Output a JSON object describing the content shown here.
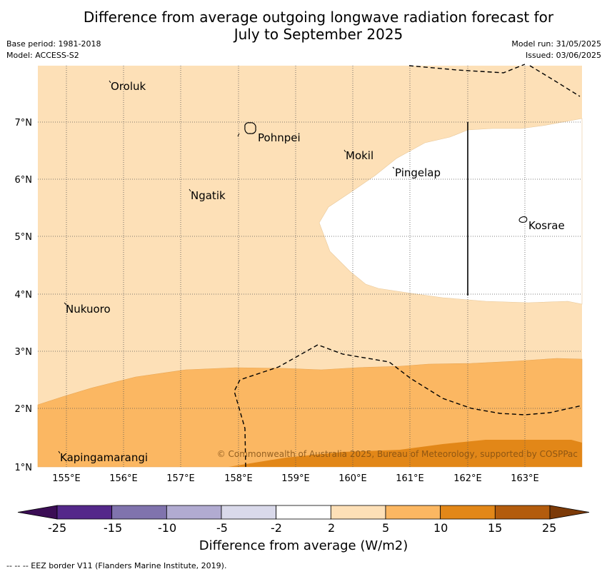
{
  "header": {
    "title_line1": "Difference from average outgoing longwave radiation forecast for",
    "title_line2": "July to September 2025",
    "base_period": "Base period: 1981-2018",
    "model": "Model: ACCESS-S2",
    "model_run": "Model run: 31/05/2025",
    "issued": "Issued: 03/06/2025"
  },
  "map": {
    "lon_labels": [
      "155°E",
      "156°E",
      "157°E",
      "158°E",
      "159°E",
      "160°E",
      "161°E",
      "162°E",
      "163°E"
    ],
    "lat_labels": [
      "7°N",
      "6°N",
      "5°N",
      "4°N",
      "3°N",
      "2°N",
      "1°N"
    ],
    "places": [
      "Oroluk",
      "Pohnpei",
      "Mokil",
      "Pingelap",
      "Ngatik",
      "Kosrae",
      "Nukuoro",
      "Kapingamarangi"
    ],
    "copyright": "© Commonwealth of Australia 2025, Bureau of Meteorology, supported by COSPPac",
    "colors": {
      "white": "#ffffff",
      "light_orange": "#fde0b7",
      "mid_orange": "#fbb762",
      "dark_orange": "#e28718"
    }
  },
  "colorbar": {
    "ticks": [
      "-25",
      "-15",
      "-10",
      "-5",
      "-2",
      "2",
      "5",
      "10",
      "15",
      "25"
    ],
    "colors": [
      "#3b0d55",
      "#54288a",
      "#8073ad",
      "#b1abd1",
      "#d9d9ea",
      "#ffffff",
      "#fde0b7",
      "#fbb762",
      "#e28718",
      "#b35c0d",
      "#7c3a08"
    ],
    "title": "Difference from average (W/m2)"
  },
  "footer": {
    "legend": "-- -- -- EEZ border V11 (Flanders Marine Institute, 2019)."
  }
}
